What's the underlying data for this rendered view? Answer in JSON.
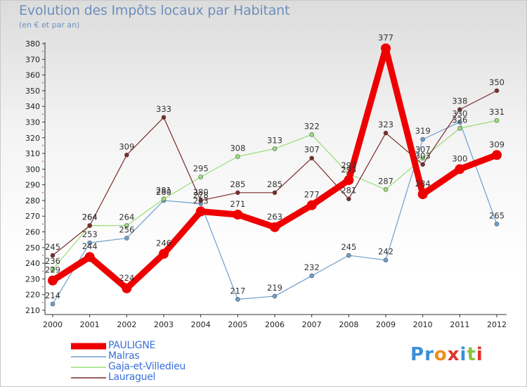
{
  "header": {
    "title": "Evolution des Impôts locaux par Habitant",
    "subtitle": "(en € et par an)"
  },
  "chart_data": {
    "type": "line",
    "title": "Evolution des Impôts locaux par Habitant",
    "subtitle": "(en € et par an)",
    "xlabel": "",
    "ylabel": "",
    "x": [
      "2000",
      "2001",
      "2002",
      "2003",
      "2004",
      "2005",
      "2006",
      "2007",
      "2008",
      "2009",
      "2010",
      "2011",
      "2012"
    ],
    "ylim": [
      210,
      380
    ],
    "yticks": [
      210,
      220,
      230,
      240,
      250,
      260,
      270,
      280,
      290,
      300,
      310,
      320,
      330,
      340,
      350,
      360,
      370,
      380
    ],
    "grid": false,
    "legend_position": "bottom-left",
    "series": [
      {
        "name": "PAULIGNE",
        "color": "#ee0000",
        "values": [
          229,
          244,
          224,
          246,
          273,
          271,
          263,
          277,
          293,
          377,
          284,
          300,
          309
        ]
      },
      {
        "name": "Malras",
        "color": "#6d9fcf",
        "values": [
          214,
          253,
          256,
          280,
          278,
          217,
          219,
          232,
          245,
          242,
          319,
          330,
          265
        ]
      },
      {
        "name": "Gaja-et-Villedieu",
        "color": "#99dd77",
        "values": [
          236,
          264,
          264,
          281,
          295,
          308,
          313,
          322,
          297,
          287,
          307,
          326,
          331
        ]
      },
      {
        "name": "Lauraguel",
        "color": "#7a2a2a",
        "values": [
          245,
          264,
          309,
          333,
          280,
          285,
          285,
          307,
          281,
          323,
          303,
          338,
          350
        ]
      }
    ]
  },
  "legend": {
    "items": [
      {
        "label": "PAULIGNE"
      },
      {
        "label": "Malras"
      },
      {
        "label": "Gaja-et-Villedieu"
      },
      {
        "label": "Lauraguel"
      }
    ]
  },
  "brand": {
    "letters": [
      "P",
      "r",
      "o",
      "x",
      "i",
      "t",
      "i"
    ],
    "colors": [
      "#3a8fd8",
      "#3a8fd8",
      "#f08c1e",
      "#e0342c",
      "#3a8fd8",
      "#88c440",
      "#e0342c"
    ]
  }
}
